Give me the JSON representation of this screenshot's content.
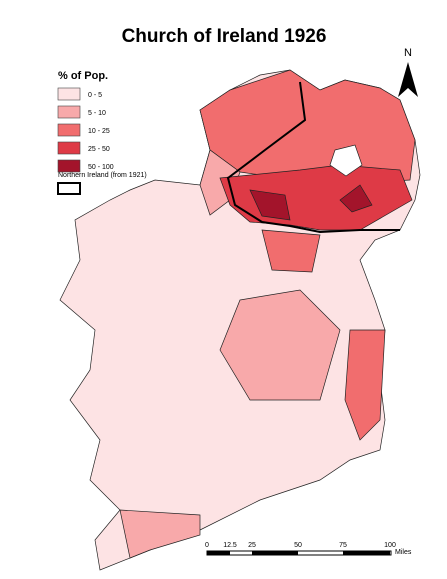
{
  "title": "Church of Ireland 1926",
  "legend": {
    "title": "% of Pop.",
    "classes": [
      {
        "label": "0 - 5",
        "color": "#fde3e4"
      },
      {
        "label": "5 - 10",
        "color": "#f8a9aa"
      },
      {
        "label": "10 - 25",
        "color": "#f16d6e"
      },
      {
        "label": "25 - 50",
        "color": "#de3a46"
      },
      {
        "label": "50 - 100",
        "color": "#a3142b"
      }
    ],
    "boundary": "Northern Ireland (from 1921)"
  },
  "north": "N",
  "scale": {
    "labels": [
      "0",
      "12.5",
      "25",
      "50",
      "75",
      "100"
    ],
    "unit": "Miles"
  }
}
